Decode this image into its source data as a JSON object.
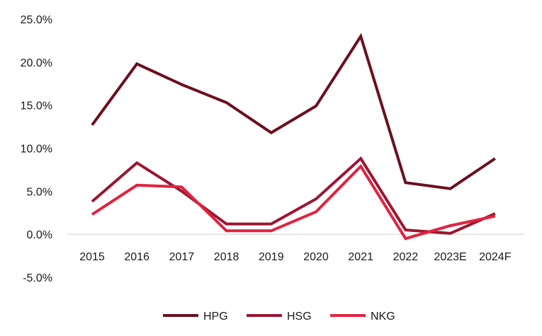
{
  "chart_data": {
    "type": "line",
    "title": "",
    "xlabel": "",
    "ylabel": "",
    "categories": [
      "2015",
      "2016",
      "2017",
      "2018",
      "2019",
      "2020",
      "2021",
      "2022",
      "2023E",
      "2024F"
    ],
    "y_ticks": [
      -5.0,
      0.0,
      5.0,
      10.0,
      15.0,
      20.0,
      25.0
    ],
    "y_tick_labels": [
      "-5.0%",
      "0.0%",
      "5.0%",
      "10.0%",
      "15.0%",
      "20.0%",
      "25.0%"
    ],
    "ylim": [
      -5.0,
      25.0
    ],
    "grid": false,
    "legend_position": "bottom",
    "series": [
      {
        "name": "HPG",
        "color": "#6b0f1e",
        "values": [
          12.7,
          19.8,
          17.4,
          15.3,
          11.8,
          14.9,
          23.0,
          6.0,
          5.3,
          8.8
        ]
      },
      {
        "name": "HSG",
        "color": "#9b1631",
        "values": [
          3.8,
          8.3,
          5.0,
          1.2,
          1.2,
          4.1,
          8.8,
          0.5,
          0.1,
          2.4
        ]
      },
      {
        "name": "NKG",
        "color": "#e0233f",
        "values": [
          2.3,
          5.7,
          5.5,
          0.4,
          0.4,
          2.6,
          7.9,
          -0.5,
          1.0,
          2.1
        ]
      }
    ]
  }
}
